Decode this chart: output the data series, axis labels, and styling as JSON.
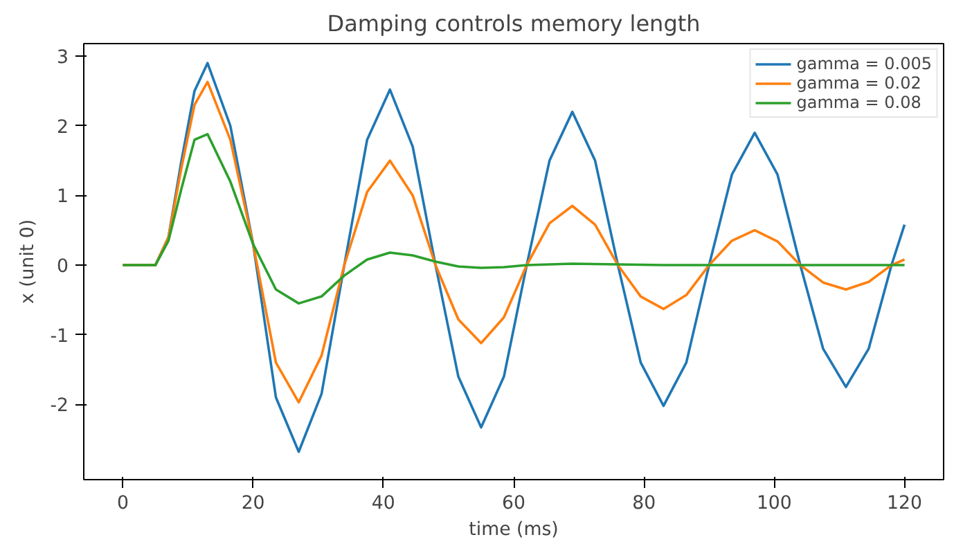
{
  "chart_data": {
    "type": "line",
    "title": "Damping controls memory length",
    "xlabel": "time (ms)",
    "ylabel": "x (unit 0)",
    "xlim": [
      -6,
      126
    ],
    "ylim": [
      -3.08,
      3.18
    ],
    "xticks": [
      0,
      20,
      40,
      60,
      80,
      100,
      120
    ],
    "yticks": [
      -2,
      -1,
      0,
      1,
      2,
      3
    ],
    "grid": false,
    "legend": "top right",
    "line_style": "solid",
    "series": [
      {
        "name": "gamma = 0.005",
        "color": "#1f77b4",
        "x": [
          0,
          5,
          7,
          9,
          11,
          13,
          16.5,
          20,
          23.5,
          27,
          30.5,
          34,
          37.5,
          41,
          44.5,
          48,
          51.5,
          55,
          58.5,
          62,
          65.5,
          69,
          72.5,
          76,
          79.5,
          83,
          86.5,
          90,
          93.5,
          97,
          100.5,
          104,
          107.5,
          111,
          114.5,
          118,
          120
        ],
        "values": [
          0,
          0,
          0.4,
          1.5,
          2.5,
          2.9,
          2.0,
          0.3,
          -1.9,
          -2.68,
          -1.85,
          0,
          1.8,
          2.52,
          1.7,
          0,
          -1.6,
          -2.33,
          -1.6,
          0,
          1.5,
          2.2,
          1.5,
          0,
          -1.4,
          -2.02,
          -1.4,
          0,
          1.3,
          1.9,
          1.3,
          0,
          -1.2,
          -1.75,
          -1.2,
          0,
          0.58
        ]
      },
      {
        "name": "gamma = 0.02",
        "color": "#ff7f0e",
        "x": [
          0,
          5,
          7,
          9,
          11,
          13,
          16.5,
          20,
          23.5,
          27,
          30.5,
          34,
          37.5,
          41,
          44.5,
          48,
          51.5,
          55,
          58.5,
          62,
          65.5,
          69,
          72.5,
          76,
          79.5,
          83,
          86.5,
          90,
          93.5,
          97,
          100.5,
          104,
          107.5,
          111,
          114.5,
          118,
          120
        ],
        "values": [
          0,
          0,
          0.4,
          1.4,
          2.3,
          2.63,
          1.8,
          0.3,
          -1.4,
          -1.97,
          -1.3,
          0,
          1.05,
          1.5,
          1.0,
          0,
          -0.78,
          -1.12,
          -0.75,
          0,
          0.6,
          0.85,
          0.58,
          0,
          -0.45,
          -0.63,
          -0.43,
          0,
          0.35,
          0.5,
          0.34,
          0,
          -0.25,
          -0.35,
          -0.24,
          0,
          0.08
        ]
      },
      {
        "name": "gamma = 0.08",
        "color": "#2ca02c",
        "x": [
          0,
          5,
          7,
          9,
          11,
          13,
          16.5,
          20,
          23.5,
          27,
          30.5,
          34,
          37.5,
          41,
          44.5,
          48,
          51.5,
          55,
          58.5,
          62,
          69,
          76,
          83,
          90,
          120
        ],
        "values": [
          0,
          0,
          0.35,
          1.1,
          1.8,
          1.88,
          1.2,
          0.3,
          -0.35,
          -0.55,
          -0.45,
          -0.15,
          0.08,
          0.18,
          0.14,
          0.05,
          -0.02,
          -0.04,
          -0.03,
          0,
          0.02,
          0.01,
          0,
          0,
          0
        ]
      }
    ]
  }
}
